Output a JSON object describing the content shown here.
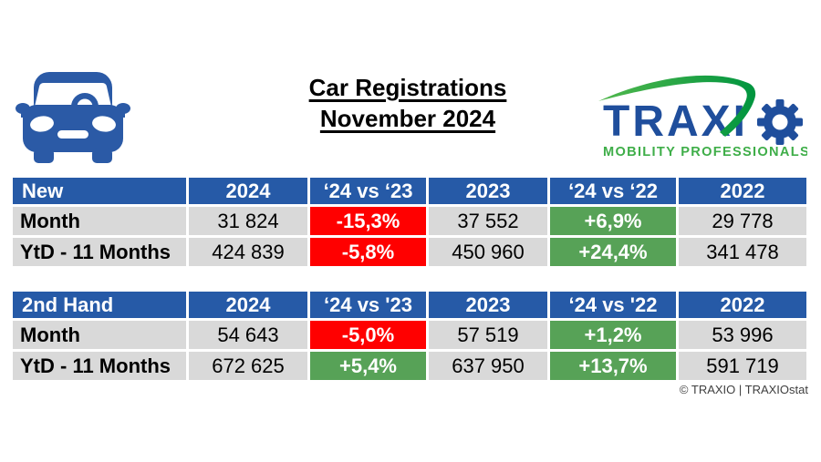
{
  "page": {
    "title_line1": "Car Registrations",
    "title_line2": "November 2024",
    "copyright": "© TRAXIO | TRAXIOstat"
  },
  "logo": {
    "brand": "TRAXI",
    "tagline": "MOBILITY PROFESSIONALS"
  },
  "icons": {
    "car": "car-icon",
    "gear": "gear-icon",
    "swoosh": "swoosh-arc-icon"
  },
  "colors": {
    "header_blue": "#265AA7",
    "row_gray": "#D9D9D9",
    "negative_red": "#FF0000",
    "positive_green": "#57A257",
    "logo_blue": "#1F4E9C",
    "logo_green": "#3FAE49",
    "logo_green_light": "#52B84D",
    "logo_green_dark": "#00953F",
    "car_blue": "#2B5AA6"
  },
  "chart_data": [
    {
      "type": "table",
      "name": "new",
      "columns": [
        "New",
        "2024",
        "‘24 vs ‘23",
        "2023",
        "‘24 vs ‘22",
        "2022"
      ],
      "rows": [
        {
          "label": "Month",
          "cells": [
            {
              "value": "31 824",
              "type": "value"
            },
            {
              "value": "-15,3%",
              "type": "negative"
            },
            {
              "value": "37 552",
              "type": "value"
            },
            {
              "value": "+6,9%",
              "type": "positive"
            },
            {
              "value": "29 778",
              "type": "value"
            }
          ]
        },
        {
          "label": "YtD - 11 Months",
          "cells": [
            {
              "value": "424 839",
              "type": "value"
            },
            {
              "value": "-5,8%",
              "type": "negative"
            },
            {
              "value": "450 960",
              "type": "value"
            },
            {
              "value": "+24,4%",
              "type": "positive"
            },
            {
              "value": "341 478",
              "type": "value"
            }
          ]
        }
      ]
    },
    {
      "type": "table",
      "name": "second-hand",
      "columns": [
        "2nd Hand",
        "2024",
        "‘24 vs '23",
        "2023",
        "‘24 vs '22",
        "2022"
      ],
      "rows": [
        {
          "label": "Month",
          "cells": [
            {
              "value": "54 643",
              "type": "value"
            },
            {
              "value": "-5,0%",
              "type": "negative"
            },
            {
              "value": "57 519",
              "type": "value"
            },
            {
              "value": "+1,2%",
              "type": "positive"
            },
            {
              "value": "53 996",
              "type": "value"
            }
          ]
        },
        {
          "label": "YtD - 11 Months",
          "cells": [
            {
              "value": "672 625",
              "type": "value"
            },
            {
              "value": "+5,4%",
              "type": "positive"
            },
            {
              "value": "637 950",
              "type": "value"
            },
            {
              "value": "+13,7%",
              "type": "positive"
            },
            {
              "value": "591 719",
              "type": "value"
            }
          ]
        }
      ]
    }
  ]
}
